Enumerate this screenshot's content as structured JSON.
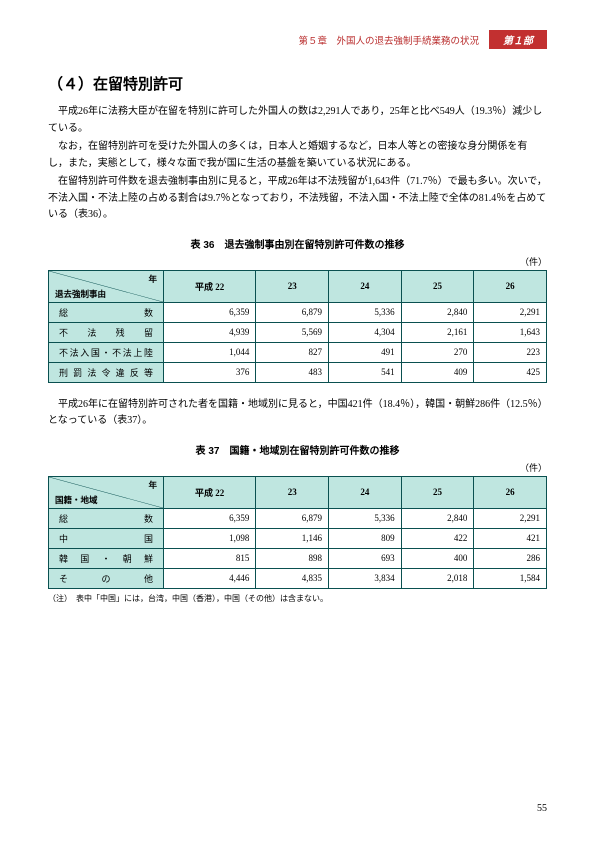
{
  "header": {
    "chapter": "第５章　外国人の退去強制手続業務の状況",
    "part": "第１部"
  },
  "section": {
    "heading": "（４）在留特別許可",
    "para1": "平成26年に法務大臣が在留を特別に許可した外国人の数は2,291人であり，25年と比べ549人（19.3％）減少している。",
    "para2": "なお，在留特別許可を受けた外国人の多くは，日本人と婚姻するなど，日本人等との密接な身分関係を有し，また，実態として，様々な面で我が国に生活の基盤を築いている状況にある。",
    "para3": "在留特別許可件数を退去強制事由別に見ると，平成26年は不法残留が1,643件（71.7％）で最も多い。次いで，不法入国・不法上陸の占める割合は9.7％となっており，不法残留，不法入国・不法上陸で全体の81.4％を占めている（表36）。",
    "para4": "平成26年に在留特別許可された者を国籍・地域別に見ると，中国421件（18.4％），韓国・朝鮮286件（12.5％）となっている（表37）。"
  },
  "table36": {
    "caption": "表 36　退去強制事由別在留特別許可件数の推移",
    "unit": "（件）",
    "diag_top": "年",
    "diag_bottom": "退去強制事由",
    "columns": [
      "平成 22",
      "23",
      "24",
      "25",
      "26"
    ],
    "rows": [
      {
        "label": "総数",
        "values": [
          "6,359",
          "6,879",
          "5,336",
          "2,840",
          "2,291"
        ],
        "is_total": true
      },
      {
        "label": "不法残留",
        "values": [
          "4,939",
          "5,569",
          "4,304",
          "2,161",
          "1,643"
        ]
      },
      {
        "label": "不法入国・不法上陸",
        "values": [
          "1,044",
          "827",
          "491",
          "270",
          "223"
        ]
      },
      {
        "label": "刑罰法令違反等",
        "values": [
          "376",
          "483",
          "541",
          "409",
          "425"
        ]
      }
    ]
  },
  "table37": {
    "caption": "表 37　国籍・地域別在留特別許可件数の推移",
    "unit": "（件）",
    "diag_top": "年",
    "diag_bottom": "国籍・地域",
    "columns": [
      "平成 22",
      "23",
      "24",
      "25",
      "26"
    ],
    "rows": [
      {
        "label": "総数",
        "values": [
          "6,359",
          "6,879",
          "5,336",
          "2,840",
          "2,291"
        ],
        "is_total": true
      },
      {
        "label": "中国",
        "values": [
          "1,098",
          "1,146",
          "809",
          "422",
          "421"
        ]
      },
      {
        "label": "韓国・朝鮮",
        "values": [
          "815",
          "898",
          "693",
          "400",
          "286"
        ]
      },
      {
        "label": "その他",
        "values": [
          "4,446",
          "4,835",
          "3,834",
          "2,018",
          "1,584"
        ]
      }
    ],
    "note": "（注）　表中「中国」には，台湾，中国（香港），中国（その他）は含まない。"
  },
  "page_number": "55",
  "colors": {
    "header_bg": "#bfe6e0",
    "border": "#0a5050",
    "red": "#b92d2d",
    "badge_bg": "#c23030"
  }
}
